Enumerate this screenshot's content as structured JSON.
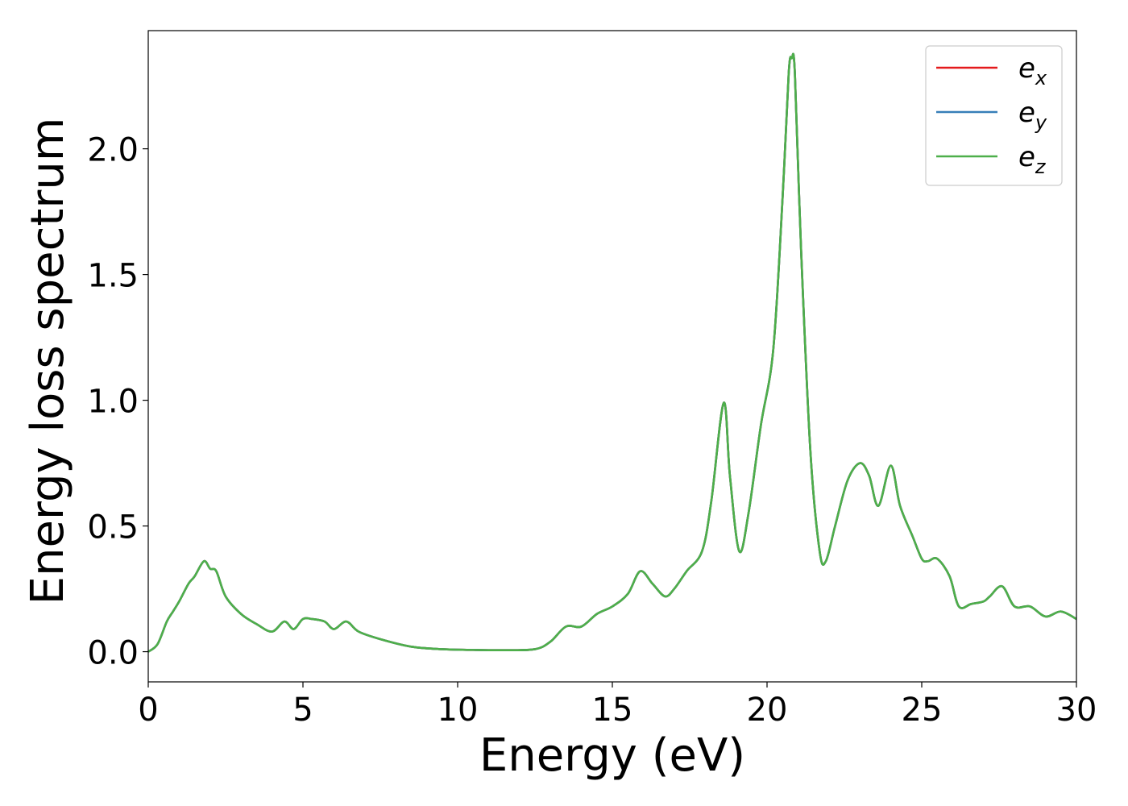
{
  "chart_data": {
    "type": "line",
    "title": "",
    "xlabel": "Energy (eV)",
    "ylabel": "Energy loss spectrum",
    "xlim": [
      0,
      30
    ],
    "ylim": [
      -0.12,
      2.47
    ],
    "xticks": [
      0,
      5,
      10,
      15,
      20,
      25,
      30
    ],
    "xtick_labels": [
      "0",
      "5",
      "10",
      "15",
      "20",
      "25",
      "30"
    ],
    "yticks": [
      0.0,
      0.5,
      1.0,
      1.5,
      2.0
    ],
    "ytick_labels": [
      "0.0",
      "0.5",
      "1.0",
      "1.5",
      "2.0"
    ],
    "grid": false,
    "legend_position": "top-right",
    "x": [
      0,
      0.3,
      0.6,
      0.8,
      1.0,
      1.3,
      1.5,
      1.8,
      2.0,
      2.2,
      2.5,
      3.0,
      3.5,
      4.0,
      4.4,
      4.7,
      5.0,
      5.3,
      5.7,
      6.0,
      6.4,
      6.8,
      7.5,
      8.5,
      9.5,
      10.5,
      11.5,
      12.5,
      13.0,
      13.5,
      14.0,
      14.5,
      15.0,
      15.5,
      15.9,
      16.3,
      16.7,
      17.0,
      17.4,
      17.9,
      18.2,
      18.6,
      18.8,
      19.1,
      19.4,
      19.8,
      20.2,
      20.5,
      20.7,
      20.8,
      20.9,
      21.1,
      21.4,
      21.7,
      21.9,
      22.2,
      22.6,
      23.0,
      23.3,
      23.6,
      24.0,
      24.3,
      24.7,
      25.0,
      25.2,
      25.5,
      25.9,
      26.2,
      26.6,
      27.0,
      27.2,
      27.6,
      28.0,
      28.5,
      29.0,
      29.5,
      30.0
    ],
    "series": [
      {
        "name": "e_x",
        "color": "#e41a1c",
        "values": [
          0.0,
          0.03,
          0.12,
          0.16,
          0.2,
          0.27,
          0.3,
          0.36,
          0.33,
          0.32,
          0.22,
          0.15,
          0.11,
          0.08,
          0.12,
          0.09,
          0.13,
          0.13,
          0.12,
          0.09,
          0.12,
          0.08,
          0.05,
          0.02,
          0.01,
          0.007,
          0.006,
          0.01,
          0.04,
          0.1,
          0.1,
          0.15,
          0.18,
          0.23,
          0.32,
          0.27,
          0.22,
          0.25,
          0.32,
          0.4,
          0.6,
          0.99,
          0.7,
          0.4,
          0.55,
          0.9,
          1.2,
          1.8,
          2.3,
          2.36,
          2.3,
          1.6,
          0.8,
          0.4,
          0.36,
          0.5,
          0.68,
          0.75,
          0.7,
          0.58,
          0.74,
          0.58,
          0.46,
          0.37,
          0.36,
          0.37,
          0.3,
          0.18,
          0.19,
          0.2,
          0.22,
          0.26,
          0.18,
          0.18,
          0.14,
          0.16,
          0.13
        ]
      },
      {
        "name": "e_y",
        "color": "#377eb8",
        "values": [
          0.0,
          0.03,
          0.12,
          0.16,
          0.2,
          0.27,
          0.3,
          0.36,
          0.33,
          0.32,
          0.22,
          0.15,
          0.11,
          0.08,
          0.12,
          0.09,
          0.13,
          0.13,
          0.12,
          0.09,
          0.12,
          0.08,
          0.05,
          0.02,
          0.01,
          0.007,
          0.006,
          0.01,
          0.04,
          0.1,
          0.1,
          0.15,
          0.18,
          0.23,
          0.32,
          0.27,
          0.22,
          0.25,
          0.32,
          0.4,
          0.6,
          0.99,
          0.7,
          0.4,
          0.55,
          0.9,
          1.2,
          1.8,
          2.3,
          2.36,
          2.3,
          1.6,
          0.8,
          0.4,
          0.36,
          0.5,
          0.68,
          0.75,
          0.7,
          0.58,
          0.74,
          0.58,
          0.46,
          0.37,
          0.36,
          0.37,
          0.3,
          0.18,
          0.19,
          0.2,
          0.22,
          0.26,
          0.18,
          0.18,
          0.14,
          0.16,
          0.13
        ]
      },
      {
        "name": "e_z",
        "color": "#4daf4a",
        "values": [
          0.0,
          0.03,
          0.12,
          0.16,
          0.2,
          0.27,
          0.3,
          0.36,
          0.33,
          0.32,
          0.22,
          0.15,
          0.11,
          0.08,
          0.12,
          0.09,
          0.13,
          0.13,
          0.12,
          0.09,
          0.12,
          0.08,
          0.05,
          0.02,
          0.01,
          0.007,
          0.006,
          0.01,
          0.04,
          0.1,
          0.1,
          0.15,
          0.18,
          0.23,
          0.32,
          0.27,
          0.22,
          0.25,
          0.32,
          0.4,
          0.6,
          0.99,
          0.7,
          0.4,
          0.55,
          0.9,
          1.2,
          1.8,
          2.3,
          2.36,
          2.3,
          1.6,
          0.8,
          0.4,
          0.36,
          0.5,
          0.68,
          0.75,
          0.7,
          0.58,
          0.74,
          0.58,
          0.46,
          0.37,
          0.36,
          0.37,
          0.3,
          0.18,
          0.19,
          0.2,
          0.22,
          0.26,
          0.18,
          0.18,
          0.14,
          0.16,
          0.13
        ]
      }
    ],
    "legend": [
      {
        "base": "e",
        "sub": "x",
        "color": "#e41a1c"
      },
      {
        "base": "e",
        "sub": "y",
        "color": "#377eb8"
      },
      {
        "base": "e",
        "sub": "z",
        "color": "#4daf4a"
      }
    ]
  }
}
